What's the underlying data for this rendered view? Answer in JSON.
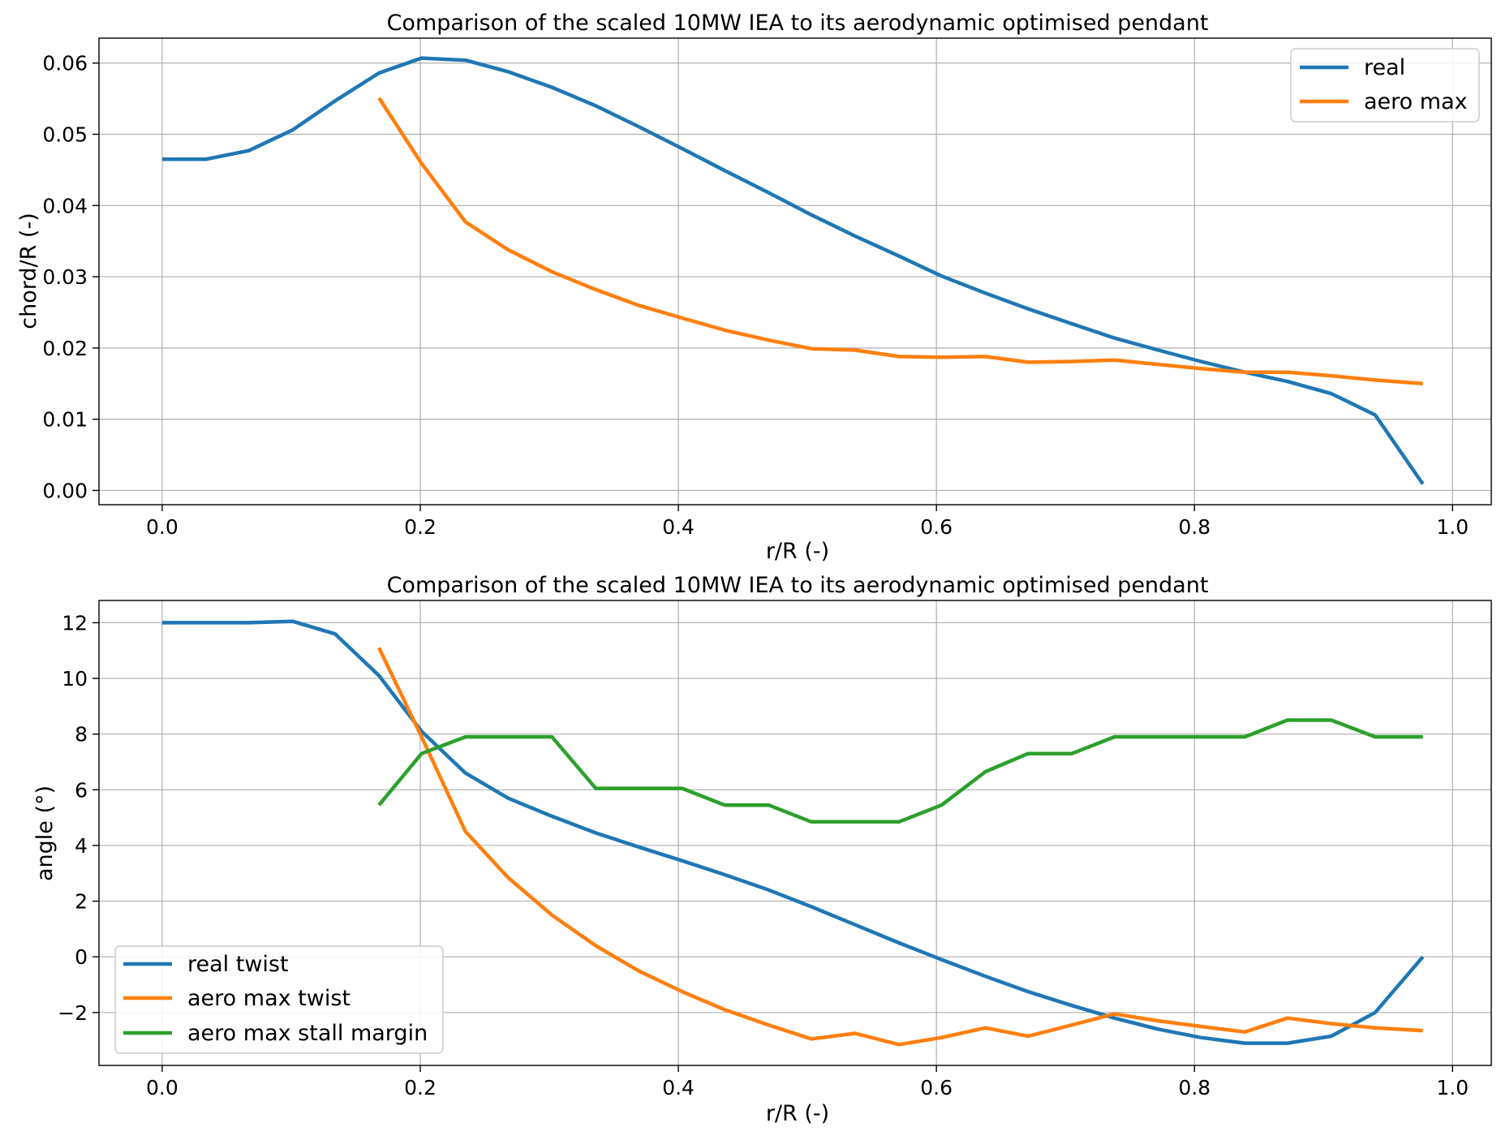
{
  "colors": {
    "blue": "#1f77b4",
    "orange": "#ff7f0e",
    "green": "#2ca02c"
  },
  "chart_data": [
    {
      "type": "line",
      "title": "Comparison of the scaled 10MW IEA to its aerodynamic optimised pendant",
      "xlabel": "r/R (-)",
      "ylabel": "chord/R (-)",
      "xlim": [
        -0.049,
        1.03
      ],
      "ylim": [
        -0.002,
        0.0635
      ],
      "xticks": [
        0.0,
        0.2,
        0.4,
        0.6,
        0.8,
        1.0
      ],
      "xtick_labels": [
        "0.0",
        "0.2",
        "0.4",
        "0.6",
        "0.8",
        "1.0"
      ],
      "yticks": [
        0.0,
        0.01,
        0.02,
        0.03,
        0.04,
        0.05,
        0.06
      ],
      "ytick_labels": [
        "0.00",
        "0.01",
        "0.02",
        "0.03",
        "0.04",
        "0.05",
        "0.06"
      ],
      "grid": true,
      "legend_position": "top-right",
      "series": [
        {
          "name": "real",
          "color": "#1f77b4",
          "x": [
            0.0,
            0.034,
            0.067,
            0.101,
            0.134,
            0.168,
            0.201,
            0.235,
            0.268,
            0.302,
            0.336,
            0.369,
            0.403,
            0.436,
            0.47,
            0.503,
            0.537,
            0.571,
            0.604,
            0.638,
            0.671,
            0.705,
            0.738,
            0.772,
            0.805,
            0.839,
            0.872,
            0.906,
            0.94,
            0.977
          ],
          "y": [
            0.0465,
            0.0465,
            0.0477,
            0.0506,
            0.0547,
            0.0586,
            0.0607,
            0.0604,
            0.0588,
            0.0566,
            0.054,
            0.0511,
            0.048,
            0.0449,
            0.0418,
            0.0387,
            0.0357,
            0.0329,
            0.0301,
            0.0277,
            0.0255,
            0.0234,
            0.0214,
            0.0197,
            0.0181,
            0.0166,
            0.0153,
            0.0136,
            0.0106,
            0.0009
          ]
        },
        {
          "name": "aero max",
          "color": "#ff7f0e",
          "x": [
            0.168,
            0.201,
            0.235,
            0.268,
            0.302,
            0.336,
            0.369,
            0.403,
            0.436,
            0.47,
            0.503,
            0.537,
            0.571,
            0.604,
            0.638,
            0.671,
            0.705,
            0.738,
            0.772,
            0.805,
            0.839,
            0.872,
            0.906,
            0.94,
            0.977
          ],
          "y": [
            0.0551,
            0.0459,
            0.0377,
            0.0338,
            0.0307,
            0.0282,
            0.026,
            0.0242,
            0.0225,
            0.0211,
            0.0199,
            0.0197,
            0.0188,
            0.0187,
            0.0188,
            0.018,
            0.0181,
            0.0183,
            0.0177,
            0.0171,
            0.0166,
            0.0166,
            0.0161,
            0.0155,
            0.015
          ]
        }
      ]
    },
    {
      "type": "line",
      "title": "Comparison of the scaled 10MW IEA to its aerodynamic optimised pendant",
      "xlabel": "r/R (-)",
      "ylabel": "angle (°)",
      "xlim": [
        -0.049,
        1.03
      ],
      "ylim": [
        -3.9,
        12.8
      ],
      "xticks": [
        0.0,
        0.2,
        0.4,
        0.6,
        0.8,
        1.0
      ],
      "xtick_labels": [
        "0.0",
        "0.2",
        "0.4",
        "0.6",
        "0.8",
        "1.0"
      ],
      "yticks": [
        -2,
        0,
        2,
        4,
        6,
        8,
        10,
        12
      ],
      "ytick_labels": [
        "−2",
        "0",
        "2",
        "4",
        "6",
        "8",
        "10",
        "12"
      ],
      "grid": true,
      "legend_position": "bottom-left",
      "series": [
        {
          "name": "real twist",
          "color": "#1f77b4",
          "x": [
            0.0,
            0.034,
            0.067,
            0.101,
            0.134,
            0.168,
            0.201,
            0.235,
            0.268,
            0.302,
            0.336,
            0.369,
            0.403,
            0.436,
            0.47,
            0.503,
            0.537,
            0.571,
            0.604,
            0.638,
            0.671,
            0.705,
            0.738,
            0.772,
            0.805,
            0.839,
            0.872,
            0.906,
            0.94,
            0.977
          ],
          "y": [
            12.0,
            12.0,
            12.0,
            12.05,
            11.6,
            10.1,
            8.1,
            6.6,
            5.7,
            5.05,
            4.45,
            3.95,
            3.45,
            2.95,
            2.4,
            1.8,
            1.15,
            0.5,
            -0.1,
            -0.7,
            -1.25,
            -1.75,
            -2.2,
            -2.6,
            -2.9,
            -3.1,
            -3.1,
            -2.85,
            -2.0,
            0.0
          ]
        },
        {
          "name": "aero max twist",
          "color": "#ff7f0e",
          "x": [
            0.168,
            0.201,
            0.235,
            0.268,
            0.302,
            0.336,
            0.369,
            0.403,
            0.436,
            0.47,
            0.503,
            0.537,
            0.571,
            0.604,
            0.638,
            0.671,
            0.705,
            0.738,
            0.772,
            0.805,
            0.839,
            0.872,
            0.906,
            0.94,
            0.977
          ],
          "y": [
            11.1,
            7.9,
            4.5,
            2.85,
            1.5,
            0.4,
            -0.5,
            -1.25,
            -1.9,
            -2.45,
            -2.95,
            -2.75,
            -3.15,
            -2.9,
            -2.55,
            -2.85,
            -2.45,
            -2.05,
            -2.3,
            -2.5,
            -2.7,
            -2.2,
            -2.4,
            -2.55,
            -2.65
          ]
        },
        {
          "name": "aero max stall margin",
          "color": "#2ca02c",
          "x": [
            0.168,
            0.201,
            0.235,
            0.268,
            0.302,
            0.336,
            0.369,
            0.403,
            0.436,
            0.47,
            0.503,
            0.537,
            0.571,
            0.604,
            0.638,
            0.671,
            0.705,
            0.738,
            0.772,
            0.805,
            0.839,
            0.872,
            0.906,
            0.94,
            0.977
          ],
          "y": [
            5.45,
            7.3,
            7.9,
            7.9,
            7.9,
            6.05,
            6.05,
            6.05,
            5.45,
            5.45,
            4.85,
            4.85,
            4.85,
            5.45,
            6.65,
            7.3,
            7.3,
            7.9,
            7.9,
            7.9,
            7.9,
            8.5,
            8.5,
            7.9,
            7.9
          ]
        }
      ]
    }
  ]
}
